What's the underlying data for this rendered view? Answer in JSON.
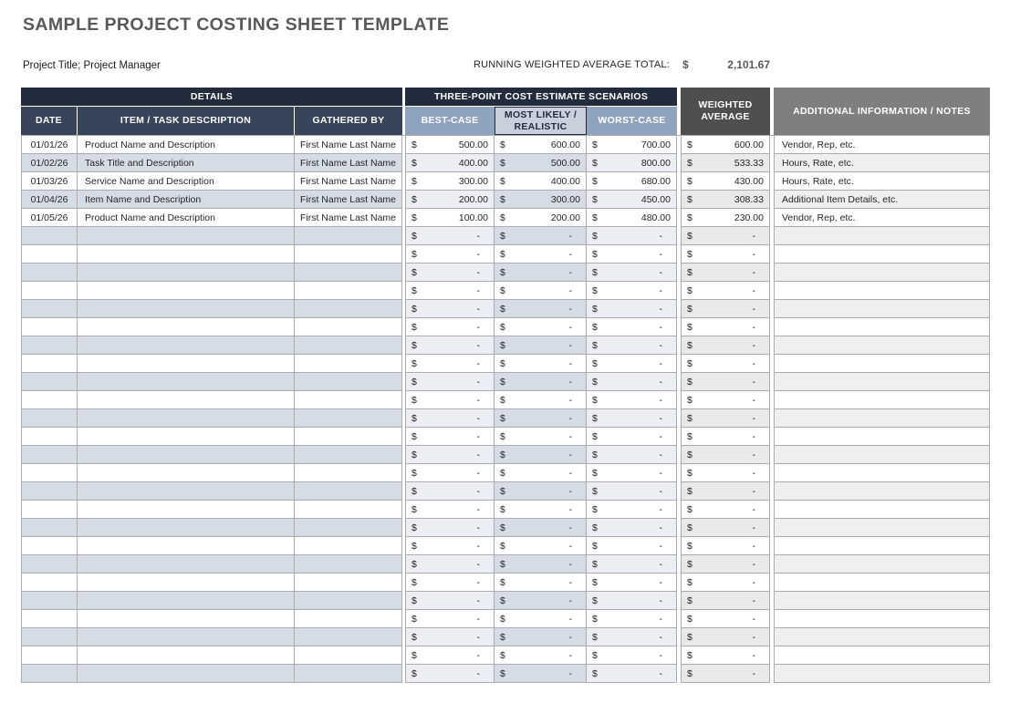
{
  "page": {
    "title": "SAMPLE PROJECT COSTING SHEET TEMPLATE",
    "subtitle": "Project Title; Project Manager",
    "running_total_label": "RUNNING WEIGHTED AVERAGE TOTAL:",
    "running_total_value": "2,101.67"
  },
  "table": {
    "currency_symbol": "$",
    "empty_value": "-",
    "empty_row_count": 25,
    "group_headers": {
      "details": "DETAILS",
      "scenarios": "THREE-POINT COST ESTIMATE SCENARIOS",
      "weighted_average": "WEIGHTED AVERAGE",
      "notes": "ADDITIONAL INFORMATION / NOTES"
    },
    "column_headers": {
      "date": "DATE",
      "item": "ITEM / TASK DESCRIPTION",
      "gathered_by": "GATHERED BY",
      "best_case": "BEST-CASE",
      "most_likely": "MOST LIKELY / REALISTIC",
      "worst_case": "WORST-CASE"
    },
    "rows": [
      {
        "date": "01/01/26",
        "item": "Product Name and Description",
        "gathered_by": "First Name Last Name",
        "best": "500.00",
        "most": "600.00",
        "worst": "700.00",
        "weighted": "600.00",
        "notes": "Vendor, Rep, etc."
      },
      {
        "date": "01/02/26",
        "item": "Task Title and Description",
        "gathered_by": "First Name Last Name",
        "best": "400.00",
        "most": "500.00",
        "worst": "800.00",
        "weighted": "533.33",
        "notes": "Hours, Rate, etc."
      },
      {
        "date": "01/03/26",
        "item": "Service Name and Description",
        "gathered_by": "First Name Last Name",
        "best": "300.00",
        "most": "400.00",
        "worst": "680.00",
        "weighted": "430.00",
        "notes": "Hours, Rate, etc."
      },
      {
        "date": "01/04/26",
        "item": "Item Name and Description",
        "gathered_by": "First Name Last Name",
        "best": "200.00",
        "most": "300.00",
        "worst": "450.00",
        "weighted": "308.33",
        "notes": "Additional Item Details, etc."
      },
      {
        "date": "01/05/26",
        "item": "Product Name and Description",
        "gathered_by": "First Name Last Name",
        "best": "100.00",
        "most": "200.00",
        "worst": "480.00",
        "weighted": "230.00",
        "notes": "Vendor, Rep, etc."
      }
    ]
  },
  "colors": {
    "header_dark_navy": "#222C3C",
    "header_navy": "#374459",
    "header_best_worst": "#8FA3BF",
    "header_most_likely": "#C9D0DC",
    "header_weighted": "#4F4F4F",
    "header_notes": "#7F7F7F",
    "alt_row_blue": "#D6DCE5",
    "alt_row_light_blue": "#EBEEF3",
    "alt_row_weighted": "#E9E9E9",
    "alt_row_notes": "#EFEFEF",
    "grid_border": "#ACACAC",
    "title_gray": "#595959"
  }
}
